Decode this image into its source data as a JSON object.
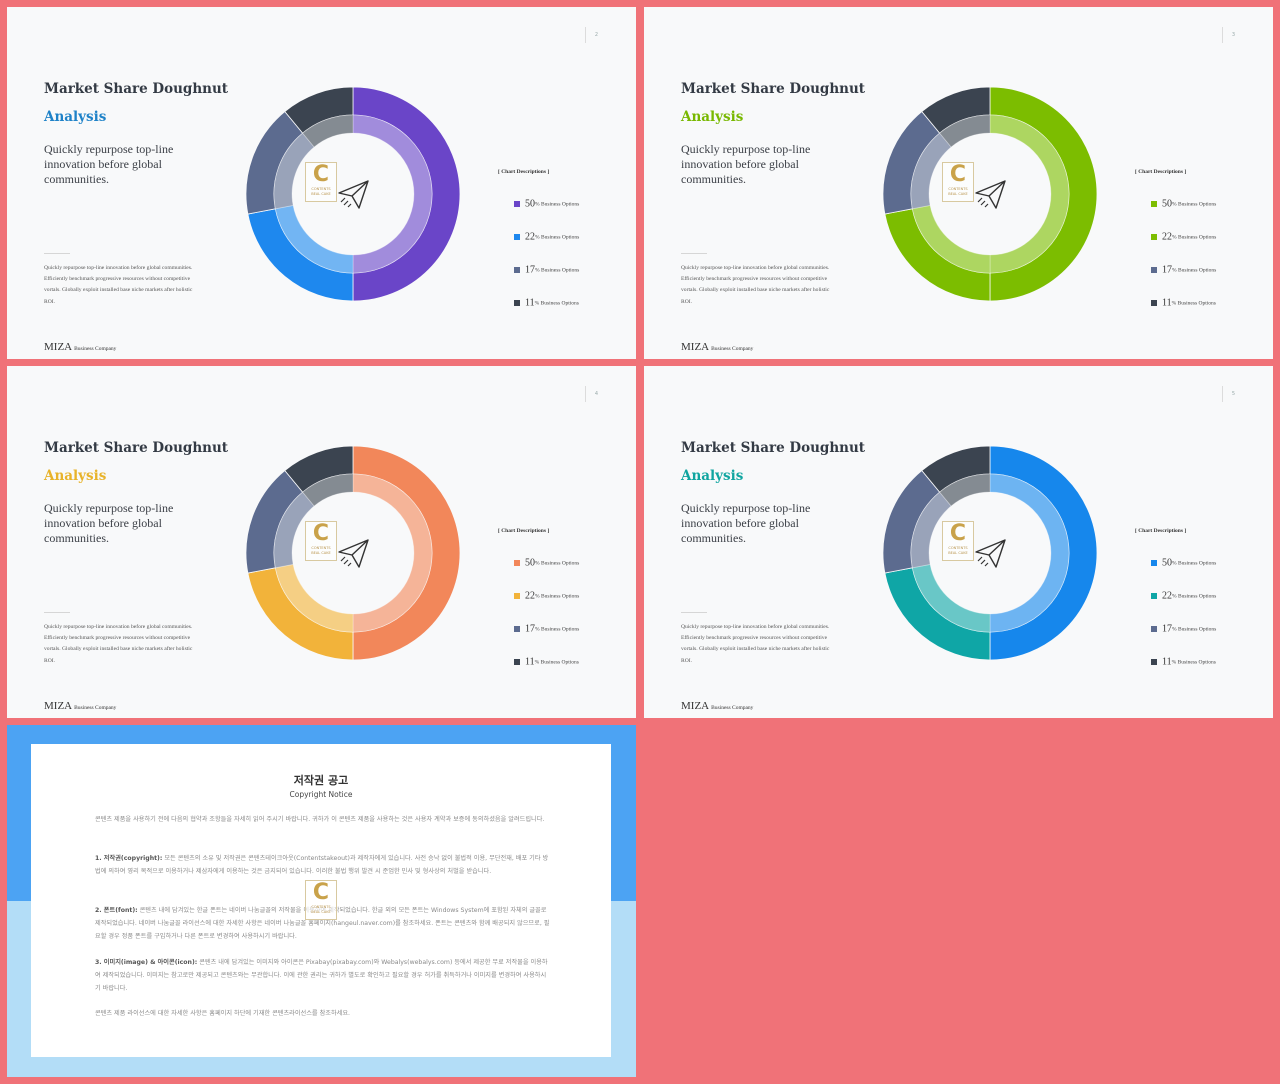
{
  "slides": [
    {
      "page": "2",
      "title": "Market Share Doughnut",
      "subtitle": "Analysis",
      "accent": "#1e82c8",
      "lead": "Quickly repurpose top-line innovation before global communities.",
      "body": "Quickly repurpose top-line innovation before global communities. Efficiently benchmark progressive resources without competitive vortals. Globally exploit installed base niche markets after holistic ROI.",
      "brand": "MIZA",
      "brand_sub": "Business Company",
      "chart_label": "[ Chart Descriptions ]",
      "stamp_letter": "C",
      "stamp_text": "CONTENTS",
      "stamp_sub": "BEAL CAKE"
    },
    {
      "page": "3",
      "title": "Market Share Doughnut",
      "subtitle": "Analysis",
      "accent": "#78b800",
      "lead": "Quickly repurpose top-line innovation before global communities.",
      "body": "Quickly repurpose top-line innovation before global communities. Efficiently benchmark progressive resources without competitive vortals. Globally exploit installed base niche markets after holistic ROI.",
      "brand": "MIZA",
      "brand_sub": "Business Company",
      "chart_label": "[ Chart Descriptions ]",
      "stamp_letter": "C",
      "stamp_text": "CONTENTS",
      "stamp_sub": "BEAL CAKE"
    },
    {
      "page": "4",
      "title": "Market Share Doughnut",
      "subtitle": "Analysis",
      "accent": "#e8b32a",
      "lead": "Quickly repurpose top-line innovation before global communities.",
      "body": "Quickly repurpose top-line innovation before global communities. Efficiently benchmark progressive resources without competitive vortals. Globally exploit installed base niche markets after holistic ROI.",
      "brand": "MIZA",
      "brand_sub": "Business Company",
      "chart_label": "[ Chart Descriptions ]",
      "stamp_letter": "C",
      "stamp_text": "CONTENTS",
      "stamp_sub": "BEAL CAKE"
    },
    {
      "page": "5",
      "title": "Market Share Doughnut",
      "subtitle": "Analysis",
      "accent": "#10a5a0",
      "lead": "Quickly repurpose top-line innovation before global communities.",
      "body": "Quickly repurpose top-line innovation before global communities. Efficiently benchmark progressive resources without competitive vortals. Globally exploit installed base niche markets after holistic ROI.",
      "brand": "MIZA",
      "brand_sub": "Business Company",
      "chart_label": "[ Chart Descriptions ]",
      "stamp_letter": "C",
      "stamp_text": "CONTENTS",
      "stamp_sub": "BEAL CAKE"
    }
  ],
  "chart_data": [
    {
      "type": "pie",
      "categories": [
        "Business Options",
        "Business Options",
        "Business Options",
        "Business Options"
      ],
      "values": [
        50,
        22,
        17,
        11
      ],
      "colors": [
        "#6a45c8",
        "#1e88ee",
        "#5c6b8f",
        "#3b4450"
      ]
    },
    {
      "type": "pie",
      "categories": [
        "Business Options",
        "Business Options",
        "Business Options",
        "Business Options"
      ],
      "values": [
        50,
        22,
        17,
        11
      ],
      "colors": [
        "#7cbd00",
        "#7cbd00",
        "#5c6b8f",
        "#3b4450"
      ]
    },
    {
      "type": "pie",
      "categories": [
        "Business Options",
        "Business Options",
        "Business Options",
        "Business Options"
      ],
      "values": [
        50,
        22,
        17,
        11
      ],
      "colors": [
        "#f2875a",
        "#f2b33a",
        "#5c6b8f",
        "#3b4450"
      ]
    },
    {
      "type": "pie",
      "categories": [
        "Business Options",
        "Business Options",
        "Business Options",
        "Business Options"
      ],
      "values": [
        50,
        22,
        17,
        11
      ],
      "colors": [
        "#1687ec",
        "#0fa6a6",
        "#5c6b8f",
        "#3b4450"
      ]
    }
  ],
  "notice": {
    "title": "저작권 공고",
    "subtitle": "Copyright Notice",
    "intro": "콘텐츠 제품을 사용하기 전에 다음의 협약과 조항들을 자세히 읽어 주시기 바랍니다. 귀하가 이 콘텐츠 제품을 사용하는 것은 사용자 계약과 보증에 동의하셨음을 알려드립니다.",
    "p1_head": "1. 저작권(copyright):",
    "p1": " 모든 콘텐츠의 소유 및 저작권은 콘텐츠테이크아웃(Contentstakeout)과 제작자에게 있습니다. 사전 승낙 없이 불법적 이용, 무단전재, 배포 기타 방법에 의하여 영리 목적으로 이용하거나 제삼자에게 이용하는 것은 금지되어 있습니다. 이러한 불법 행위 발견 시 준엄한 민사 및 형사상의 처벌을 받습니다.",
    "p2_head": "2. 폰트(font):",
    "p2": " 콘텐츠 내에 담겨있는 한글 폰트는 네이버 나눔글꼴의 저작물을 이용하여 제작되었습니다. 한글 외의 모든 폰트는 Windows System에 포함된 자체의 글꼴로 제작되었습니다. 네이버 나눔글꼴 라이선스에 대한 자세한 사항은 네이버 나눔글꼴 홈페이지(hangeul.naver.com)를 참조하세요. 폰트는 콘텐츠와 함께 배공되지 않으므로, 필요할 경우 정품 폰트를 구입하거나 다른 폰트로 변경하여 사용하시기 바랍니다.",
    "p3_head": "3. 이미지(image) & 아이콘(icon):",
    "p3": " 콘텐츠 내에 담겨있는 이미지와 아이콘은 Pixabay(pixabay.com)와 Webalys(webalys.com) 등에서 제공한 무료 저작물을 이용하여 제작되었습니다. 이미지는 참고로만 제공되고 콘텐츠와는 무관합니다. 이에 관한 권리는 귀하가 별도로 확인하고 필요할 경우 허가를 취득하거나 이미지를 변경하여 사용하시기 바랍니다.",
    "outro": "콘텐츠 제품 라이선스에 대한 자세한 사항은 홈페이지 하단에 기재한 콘텐츠라이선스를 참조하세요."
  }
}
